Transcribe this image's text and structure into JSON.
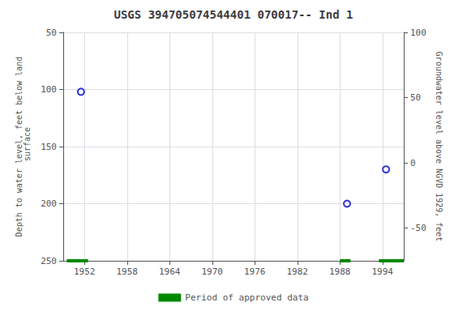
{
  "chart_data": {
    "type": "scatter",
    "title": "USGS 394705074544401 070017-- Ind 1",
    "y_label": "Depth to water level, feet below land\n surface",
    "y2_label": "Groundwater level above NGVD 1929, feet",
    "xlim": [
      1949,
      1997
    ],
    "xticks": [
      1952,
      1958,
      1964,
      1970,
      1976,
      1982,
      1988,
      1994
    ],
    "ylim": [
      250,
      50
    ],
    "yticks": [
      50,
      100,
      150,
      200,
      250
    ],
    "y2lim": [
      -75,
      100
    ],
    "y2ticks": [
      100,
      50,
      0,
      -50
    ],
    "grid": true,
    "legend": "bottom",
    "series": [
      {
        "type": "scatter",
        "marker": "circle",
        "color": "#0000cc",
        "x": [
          1951.5,
          1989.0,
          1994.5
        ],
        "values": [
          102,
          200,
          170
        ]
      },
      {
        "type": "segment",
        "name": "Period of approved data",
        "color": "#008800",
        "x": [
          [
            1949.5,
            1952.5
          ],
          [
            1988.0,
            1989.5
          ],
          [
            1993.5,
            1997.0
          ]
        ],
        "values": [
          250,
          250,
          250
        ]
      }
    ]
  }
}
